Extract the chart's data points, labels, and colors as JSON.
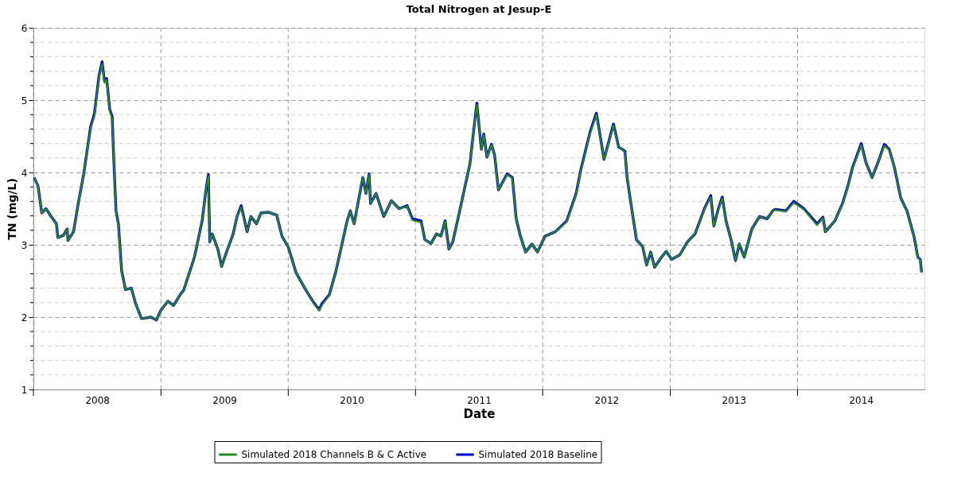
{
  "chart_data": {
    "type": "line",
    "title": "Total Nitrogen at Jesup-E",
    "xlabel": "Date",
    "ylabel": "TN (mg/L)",
    "x": [
      "2008-01-03",
      "2008-01-14",
      "2008-01-25",
      "2008-02-06",
      "2008-02-21",
      "2008-03-07",
      "2008-03-11",
      "2008-03-27",
      "2008-04-07",
      "2008-04-09",
      "2008-04-25",
      "2008-05-10",
      "2008-05-24",
      "2008-06-13",
      "2008-06-24",
      "2008-07-07",
      "2008-07-16",
      "2008-07-23",
      "2008-07-29",
      "2008-08-07",
      "2008-08-14",
      "2008-08-18",
      "2008-08-25",
      "2008-09-01",
      "2008-09-10",
      "2008-09-21",
      "2008-10-08",
      "2008-10-20",
      "2008-11-06",
      "2008-12-03",
      "2008-12-19",
      "2008-12-31",
      "2009-01-21",
      "2009-02-06",
      "2009-02-28",
      "2009-03-07",
      "2009-04-07",
      "2009-04-29",
      "2009-05-10",
      "2009-05-17",
      "2009-05-21",
      "2009-05-28",
      "2009-06-13",
      "2009-06-24",
      "2009-07-05",
      "2009-07-27",
      "2009-08-07",
      "2009-08-19",
      "2009-09-05",
      "2009-09-16",
      "2009-10-02",
      "2009-10-15",
      "2009-11-06",
      "2009-11-29",
      "2009-12-14",
      "2010-01-01",
      "2010-01-23",
      "2010-02-21",
      "2010-03-15",
      "2010-03-31",
      "2010-04-07",
      "2010-04-29",
      "2010-05-17",
      "2010-06-01",
      "2010-06-19",
      "2010-06-28",
      "2010-07-09",
      "2010-07-23",
      "2010-08-03",
      "2010-08-12",
      "2010-08-21",
      "2010-08-25",
      "2010-09-10",
      "2010-10-02",
      "2010-10-24",
      "2010-11-15",
      "2010-12-08",
      "2010-12-23",
      "2011-01-17",
      "2011-01-28",
      "2011-02-15",
      "2011-03-02",
      "2011-03-15",
      "2011-03-27",
      "2011-04-07",
      "2011-04-18",
      "2011-05-03",
      "2011-05-21",
      "2011-06-06",
      "2011-06-26",
      "2011-07-09",
      "2011-07-16",
      "2011-07-25",
      "2011-08-07",
      "2011-08-16",
      "2011-08-27",
      "2011-09-21",
      "2011-10-06",
      "2011-10-17",
      "2011-10-29",
      "2011-11-13",
      "2011-12-01",
      "2011-12-17",
      "2012-01-08",
      "2012-02-06",
      "2012-03-10",
      "2012-04-06",
      "2012-04-19",
      "2012-05-16",
      "2012-06-03",
      "2012-06-25",
      "2012-07-22",
      "2012-08-06",
      "2012-08-17",
      "2012-08-24",
      "2012-08-30",
      "2012-09-11",
      "2012-09-26",
      "2012-10-14",
      "2012-10-25",
      "2012-11-06",
      "2012-11-17",
      "2012-12-07",
      "2012-12-20",
      "2013-01-05",
      "2013-01-28",
      "2013-02-19",
      "2013-03-13",
      "2013-04-09",
      "2013-04-27",
      "2013-05-06",
      "2013-05-19",
      "2013-05-30",
      "2013-06-10",
      "2013-06-26",
      "2013-07-07",
      "2013-07-18",
      "2013-08-01",
      "2013-08-23",
      "2013-09-14",
      "2013-10-06",
      "2013-10-22",
      "2013-10-29",
      "2013-11-29",
      "2013-12-21",
      "2014-01-19",
      "2014-02-26",
      "2014-03-15",
      "2014-03-22",
      "2014-04-18",
      "2014-05-10",
      "2014-05-26",
      "2014-06-08",
      "2014-07-03",
      "2014-07-16",
      "2014-08-03",
      "2014-08-23",
      "2014-09-07",
      "2014-09-21",
      "2014-10-06",
      "2014-10-24",
      "2014-11-11",
      "2014-12-01",
      "2014-12-12",
      "2014-12-19",
      "2014-12-23"
    ],
    "series": [
      {
        "name": "Simulated 2018 Channels B & C Active",
        "color": "#228b22",
        "values": [
          3.93,
          3.82,
          3.44,
          3.5,
          3.39,
          3.29,
          3.1,
          3.13,
          3.22,
          3.06,
          3.18,
          3.61,
          3.97,
          4.61,
          4.78,
          5.31,
          5.5,
          5.24,
          5.28,
          4.85,
          4.74,
          4.24,
          3.47,
          3.26,
          2.62,
          2.38,
          2.4,
          2.19,
          1.98,
          2.0,
          1.96,
          2.09,
          2.22,
          2.16,
          2.33,
          2.37,
          2.83,
          3.33,
          3.76,
          3.95,
          3.04,
          3.15,
          2.94,
          2.7,
          2.86,
          3.15,
          3.39,
          3.52,
          3.18,
          3.39,
          3.29,
          3.44,
          3.45,
          3.41,
          3.12,
          2.97,
          2.62,
          2.37,
          2.19,
          2.09,
          2.16,
          2.3,
          2.62,
          2.94,
          3.33,
          3.47,
          3.29,
          3.65,
          3.93,
          3.71,
          3.97,
          3.57,
          3.71,
          3.39,
          3.61,
          3.5,
          3.53,
          3.34,
          3.31,
          3.07,
          3.02,
          3.15,
          3.12,
          3.32,
          2.94,
          3.04,
          3.36,
          3.76,
          4.11,
          4.94,
          4.32,
          4.52,
          4.21,
          4.38,
          4.24,
          3.76,
          3.97,
          3.92,
          3.36,
          3.12,
          2.9,
          3.01,
          2.9,
          3.12,
          3.18,
          3.32,
          3.7,
          4.02,
          4.54,
          4.8,
          4.18,
          4.65,
          4.35,
          4.32,
          4.28,
          3.93,
          3.54,
          3.07,
          2.97,
          2.72,
          2.9,
          2.69,
          2.83,
          2.91,
          2.8,
          2.86,
          3.04,
          3.15,
          3.49,
          3.66,
          3.26,
          3.49,
          3.64,
          3.33,
          3.04,
          2.78,
          3.01,
          2.83,
          3.22,
          3.39,
          3.36,
          3.47,
          3.48,
          3.46,
          3.58,
          3.49,
          3.27,
          3.37,
          3.18,
          3.33,
          3.56,
          3.81,
          4.06,
          4.38,
          4.14,
          3.93,
          4.18,
          4.37,
          4.31,
          4.07,
          3.65,
          3.47,
          3.12,
          2.83,
          2.8,
          2.62
        ]
      },
      {
        "name": "Simulated 2018 Baseline",
        "color": "#0000cd",
        "values": [
          3.93,
          3.82,
          3.44,
          3.5,
          3.39,
          3.29,
          3.1,
          3.13,
          3.22,
          3.06,
          3.18,
          3.61,
          3.97,
          4.63,
          4.81,
          5.33,
          5.53,
          5.26,
          5.3,
          4.87,
          4.77,
          4.24,
          3.47,
          3.28,
          2.64,
          2.38,
          2.4,
          2.19,
          1.98,
          2.0,
          1.96,
          2.09,
          2.22,
          2.16,
          2.33,
          2.37,
          2.83,
          3.33,
          3.76,
          3.97,
          3.04,
          3.15,
          2.94,
          2.7,
          2.86,
          3.15,
          3.39,
          3.54,
          3.18,
          3.39,
          3.29,
          3.44,
          3.45,
          3.41,
          3.12,
          2.97,
          2.62,
          2.37,
          2.2,
          2.1,
          2.18,
          2.31,
          2.62,
          2.94,
          3.33,
          3.47,
          3.29,
          3.65,
          3.93,
          3.71,
          3.98,
          3.57,
          3.71,
          3.39,
          3.61,
          3.5,
          3.54,
          3.36,
          3.33,
          3.07,
          3.02,
          3.15,
          3.12,
          3.33,
          2.94,
          3.04,
          3.36,
          3.76,
          4.11,
          4.96,
          4.32,
          4.53,
          4.21,
          4.39,
          4.24,
          3.76,
          3.98,
          3.93,
          3.36,
          3.12,
          2.9,
          3.01,
          2.9,
          3.12,
          3.18,
          3.33,
          3.71,
          4.03,
          4.56,
          4.82,
          4.18,
          4.67,
          4.35,
          4.32,
          4.29,
          3.93,
          3.54,
          3.07,
          2.97,
          2.72,
          2.9,
          2.69,
          2.83,
          2.91,
          2.8,
          2.86,
          3.04,
          3.15,
          3.5,
          3.68,
          3.26,
          3.5,
          3.66,
          3.33,
          3.04,
          2.78,
          3.01,
          2.83,
          3.22,
          3.39,
          3.36,
          3.47,
          3.49,
          3.47,
          3.6,
          3.5,
          3.29,
          3.38,
          3.18,
          3.33,
          3.57,
          3.82,
          4.07,
          4.4,
          4.14,
          3.93,
          4.18,
          4.39,
          4.32,
          4.07,
          3.65,
          3.47,
          3.12,
          2.83,
          2.8,
          2.62
        ]
      }
    ],
    "xlim": [
      "2008-01-01",
      "2014-12-31"
    ],
    "xticks": [
      {
        "value": "2008-01-01",
        "label": null
      },
      {
        "value": "2008-07-02",
        "label": "2008"
      },
      {
        "value": "2009-01-01",
        "label": null
      },
      {
        "value": "2009-07-02",
        "label": "2009"
      },
      {
        "value": "2010-01-01",
        "label": null
      },
      {
        "value": "2010-07-02",
        "label": "2010"
      },
      {
        "value": "2011-01-01",
        "label": null
      },
      {
        "value": "2011-07-02",
        "label": "2011"
      },
      {
        "value": "2012-01-01",
        "label": null
      },
      {
        "value": "2012-07-02",
        "label": "2012"
      },
      {
        "value": "2013-01-01",
        "label": null
      },
      {
        "value": "2013-07-02",
        "label": "2013"
      },
      {
        "value": "2014-01-01",
        "label": null
      },
      {
        "value": "2014-07-02",
        "label": "2014"
      }
    ],
    "ylim": [
      1,
      6
    ],
    "yticks": [
      1,
      {
        "value": 1.2,
        "label": null
      },
      {
        "value": 1.4,
        "label": null
      },
      {
        "value": 1.6,
        "label": null
      },
      {
        "value": 1.8,
        "label": null
      },
      2,
      {
        "value": 2.2,
        "label": null
      },
      {
        "value": 2.4,
        "label": null
      },
      {
        "value": 2.6,
        "label": null
      },
      {
        "value": 2.8,
        "label": null
      },
      3,
      {
        "value": 3.2,
        "label": null
      },
      {
        "value": 3.4,
        "label": null
      },
      {
        "value": 3.6,
        "label": null
      },
      {
        "value": 3.8,
        "label": null
      },
      4,
      {
        "value": 4.2,
        "label": null
      },
      {
        "value": 4.4,
        "label": null
      },
      {
        "value": 4.6,
        "label": null
      },
      {
        "value": 4.8,
        "label": null
      },
      5,
      {
        "value": 5.2,
        "label": null
      },
      {
        "value": 5.4,
        "label": null
      },
      {
        "value": 5.6,
        "label": null
      },
      {
        "value": 5.8,
        "label": null
      },
      6
    ],
    "grid": true,
    "legend": "bottom",
    "marker": "none",
    "line_style": "solid"
  }
}
